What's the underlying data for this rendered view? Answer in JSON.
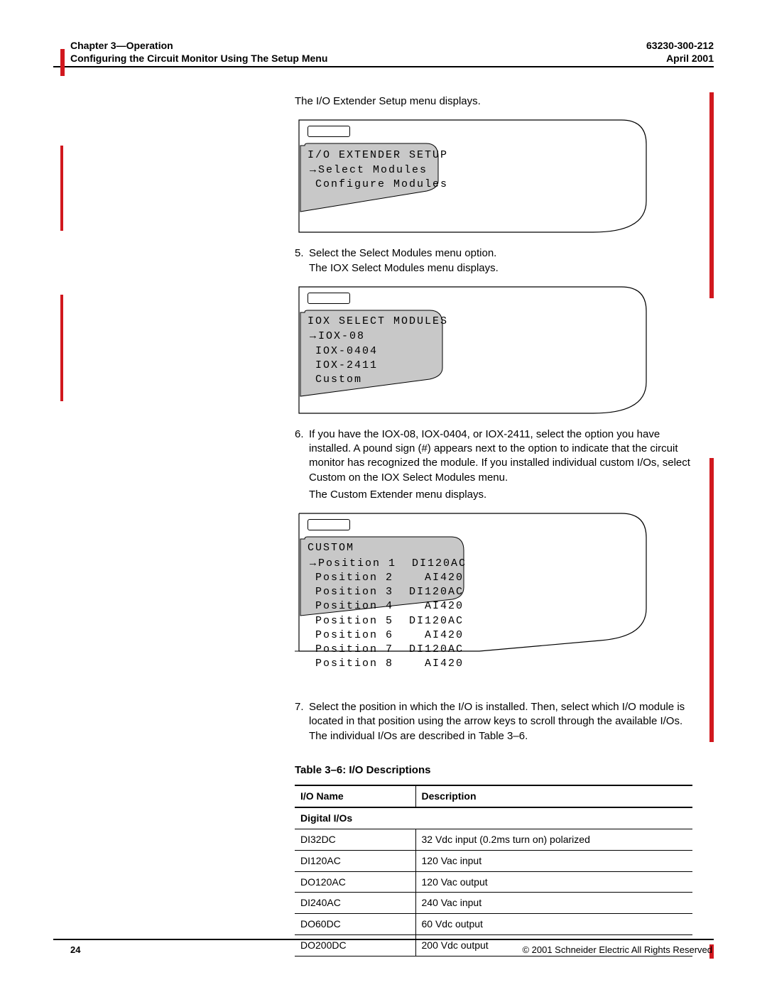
{
  "header": {
    "chapter": "Chapter 3—Operation",
    "subtitle": "Configuring the Circuit Monitor Using The Setup Menu",
    "docnum": "63230-300-212",
    "date": "April 2001"
  },
  "intro": "The I/O Extender Setup menu displays.",
  "lcd1": {
    "title": "I/O EXTENDER SETUP",
    "line1": "Select Modules",
    "line2": "Configure Modules"
  },
  "step5": {
    "num": "5.",
    "l1": "Select the Select Modules menu option.",
    "l2": "The IOX Select Modules menu displays."
  },
  "lcd2": {
    "title": "IOX SELECT MODULES",
    "line1": "IOX-08",
    "line2": "IOX-0404",
    "line3": "IOX-2411",
    "line4": "Custom"
  },
  "step6": {
    "num": "6.",
    "body": "If you have the IOX-08, IOX-0404, or IOX-2411, select the option you have installed. A pound sign (#) appears next to the option to indicate that the circuit monitor has recognized the module. If you installed individual custom I/Os, select Custom on the IOX Select Modules menu.",
    "l2": "The Custom Extender menu displays."
  },
  "lcd3": {
    "title": "CUSTOM",
    "rows": [
      {
        "pos": "Position 1",
        "val": "DI120AC"
      },
      {
        "pos": "Position 2",
        "val": "AI420"
      },
      {
        "pos": "Position 3",
        "val": "DI120AC"
      },
      {
        "pos": "Position 4",
        "val": "AI420"
      },
      {
        "pos": "Position 5",
        "val": "DI120AC"
      },
      {
        "pos": "Position 6",
        "val": "AI420"
      },
      {
        "pos": "Position 7",
        "val": "DI120AC"
      },
      {
        "pos": "Position 8",
        "val": "AI420"
      }
    ]
  },
  "step7": {
    "num": "7.",
    "body": "Select the position in which the I/O is installed. Then, select which I/O module is located in that position using the arrow keys to scroll through the available I/Os. The individual I/Os are described in Table 3–6."
  },
  "table": {
    "caption": "Table 3–6:   I/O Descriptions",
    "col1": "I/O Name",
    "col2": "Description",
    "section": "Digital I/Os",
    "rows": [
      {
        "name": "DI32DC",
        "desc": "32 Vdc input (0.2ms turn on) polarized"
      },
      {
        "name": "DI120AC",
        "desc": "120 Vac input"
      },
      {
        "name": "DO120AC",
        "desc": "120 Vac output"
      },
      {
        "name": "DI240AC",
        "desc": "240 Vac input"
      },
      {
        "name": "DO60DC",
        "desc": "60 Vdc output"
      },
      {
        "name": "DO200DC",
        "desc": "200 Vdc output"
      }
    ]
  },
  "footer": {
    "page": "24",
    "copyright": "© 2001 Schneider Electric  All Rights Reserved"
  },
  "colors": {
    "red": "#d1181e",
    "shade": "#c8c8c8"
  }
}
